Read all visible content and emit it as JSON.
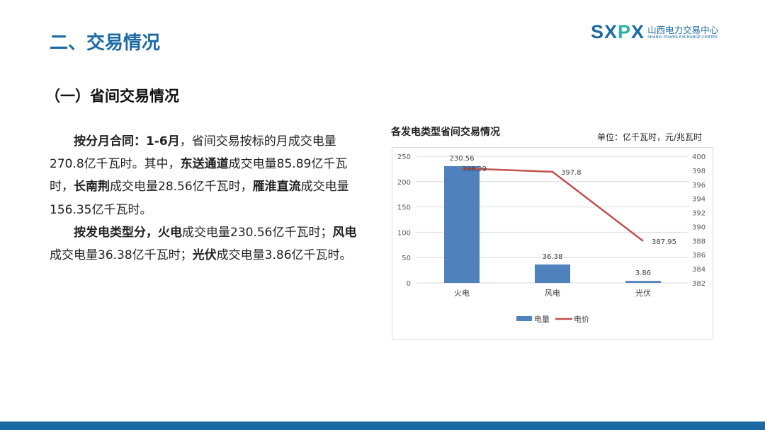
{
  "header": {
    "title": "二、交易情况"
  },
  "logo": {
    "mark": "SXPX",
    "name_cn": "山西电力交易中心",
    "name_en": "SHANXI POWER EXCHANGE CENTER"
  },
  "section": {
    "title": "（一）省间交易情况"
  },
  "body": {
    "p1": [
      {
        "text": "按分月合同：1-6月",
        "bold": true
      },
      {
        "text": "，省间交易按标的月成交电量270.8亿千瓦时。其中，",
        "bold": false
      },
      {
        "text": "东送通道",
        "bold": true
      },
      {
        "text": "成交电量85.89亿千瓦时，",
        "bold": false
      },
      {
        "text": "长南荆",
        "bold": true
      },
      {
        "text": "成交电量28.56亿千瓦时，",
        "bold": false
      },
      {
        "text": "雁淮直流",
        "bold": true
      },
      {
        "text": "成交电量156.35亿千瓦时。",
        "bold": false
      }
    ],
    "p2": [
      {
        "text": "按发电类型分，火电",
        "bold": true
      },
      {
        "text": "成交电量230.56亿千瓦时；",
        "bold": false
      },
      {
        "text": "风电",
        "bold": true
      },
      {
        "text": "成交电量36.38亿千瓦时；",
        "bold": false
      },
      {
        "text": "光伏",
        "bold": true
      },
      {
        "text": "成交电量3.86亿千瓦时。",
        "bold": false
      }
    ]
  },
  "chart_data": {
    "type": "bar",
    "title": "各发电类型省间交易情况",
    "unit": "单位：亿千瓦时，元/兆瓦时",
    "categories": [
      "火电",
      "风电",
      "光伏"
    ],
    "series": [
      {
        "name": "电量",
        "type": "bar",
        "axis": "left",
        "color": "#4f81bd",
        "values": [
          230.56,
          36.38,
          3.86
        ],
        "labels": [
          "230.56",
          "36.38",
          "3.86"
        ]
      },
      {
        "name": "电价",
        "type": "line",
        "axis": "right",
        "color": "#c0504d",
        "values": [
          398.29,
          397.8,
          387.95
        ],
        "labels": [
          "398.29",
          "397.8",
          "387.95"
        ]
      }
    ],
    "left_axis": {
      "ylim": [
        0,
        250
      ],
      "ticks": [
        "0",
        "50",
        "100",
        "150",
        "200",
        "250"
      ]
    },
    "right_axis": {
      "ylim": [
        382,
        400
      ],
      "ticks": [
        "382",
        "384",
        "386",
        "388",
        "390",
        "392",
        "394",
        "396",
        "398",
        "400"
      ]
    },
    "grid": true,
    "legend": "bottom"
  }
}
